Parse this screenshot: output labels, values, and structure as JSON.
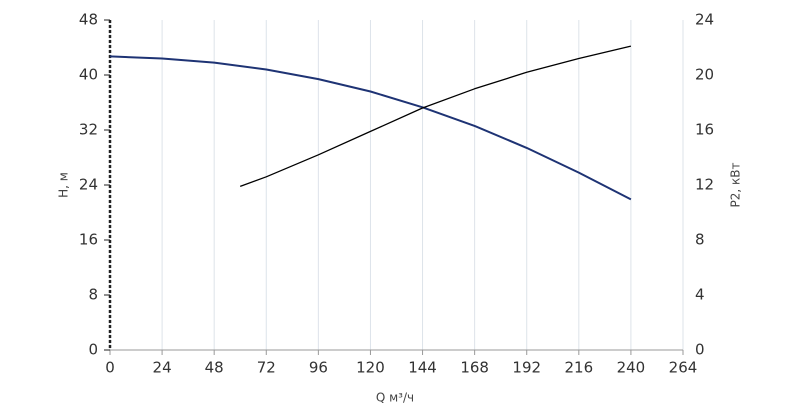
{
  "chart_data": {
    "type": "line",
    "xlabel": "Q м³/ч",
    "ylabel": "H, м",
    "y2label": "P2, кВт",
    "xlim": [
      0,
      264
    ],
    "xticks": [
      0,
      24,
      48,
      72,
      96,
      120,
      144,
      168,
      192,
      216,
      240,
      264
    ],
    "ylim": [
      0,
      48
    ],
    "yticks": [
      0,
      8,
      16,
      24,
      32,
      40,
      48
    ],
    "y2lim": [
      0,
      24
    ],
    "y2ticks": [
      0,
      4,
      8,
      12,
      16,
      20,
      24
    ],
    "grid": true,
    "series": [
      {
        "name": "H",
        "color": "#1e3374",
        "x": [
          0,
          24,
          48,
          72,
          96,
          120,
          144,
          168,
          192,
          216,
          240
        ],
        "values": [
          42.7,
          42.4,
          41.8,
          40.8,
          39.4,
          37.6,
          35.3,
          32.6,
          29.4,
          25.8,
          21.9
        ]
      },
      {
        "name": "P2",
        "color": "#000000",
        "axis": "y2",
        "x": [
          60,
          72,
          96,
          120,
          144,
          168,
          192,
          216,
          240
        ],
        "values": [
          11.9,
          12.6,
          14.2,
          15.9,
          17.6,
          19.0,
          20.2,
          21.2,
          22.1
        ]
      }
    ]
  }
}
